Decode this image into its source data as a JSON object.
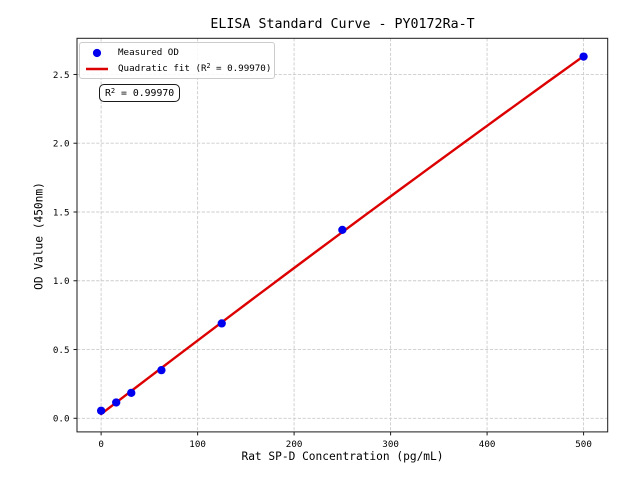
{
  "chart_data": {
    "type": "scatter",
    "title": "ELISA Standard Curve - PY0172Ra-T",
    "xlabel": "Rat SP-D Concentration (pg/mL)",
    "ylabel": "OD Value (450nm)",
    "xlim": [
      -25,
      525
    ],
    "ylim": [
      -0.099,
      2.763
    ],
    "grid": true,
    "grid_color": "#cccccc",
    "legend_position": "upper left",
    "xtick_values": [
      0,
      100,
      200,
      300,
      400,
      500
    ],
    "xtick_labels": [
      "0",
      "100",
      "200",
      "300",
      "400",
      "500"
    ],
    "ytick_values": [
      0.0,
      0.5,
      1.0,
      1.5,
      2.0,
      2.5
    ],
    "ytick_labels": [
      "0.0",
      "0.5",
      "1.0",
      "1.5",
      "2.0",
      "2.5"
    ],
    "x": [
      0,
      15.625,
      31.25,
      62.5,
      125,
      250,
      500
    ],
    "series": [
      {
        "name": "Measured OD",
        "type": "scatter",
        "marker": "circle",
        "color": "#0000ee",
        "values": [
          0.055,
          0.115,
          0.185,
          0.35,
          0.69,
          1.37,
          2.63
        ]
      },
      {
        "name": "Quadratic fit (R² = 0.99970)",
        "type": "line",
        "color": "#dd0000",
        "fit": "quadratic",
        "coefficients": [
          -3.5268e-07,
          0.0053812,
          0.030775
        ],
        "x_range": [
          0,
          500
        ]
      }
    ],
    "legend_entries": [
      {
        "prefix": "Measured OD",
        "sup": "",
        "suffix": ""
      },
      {
        "prefix": "Quadratic fit (R",
        "sup": "2",
        "suffix": " = 0.99970)"
      }
    ],
    "annotation": {
      "text": "R² = 0.99970",
      "prefix": "R",
      "sup": "2",
      "suffix": " = 0.99970"
    },
    "r_squared": "0.99970"
  }
}
